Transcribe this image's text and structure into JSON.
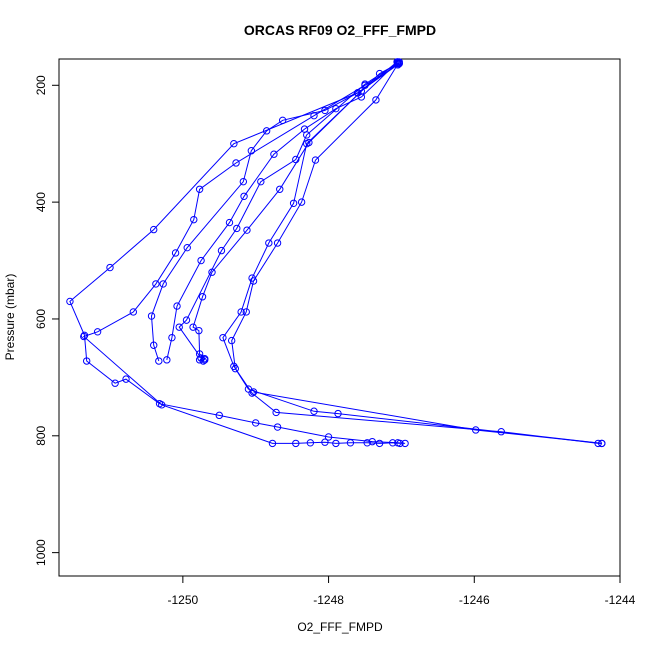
{
  "chart_data": {
    "type": "line",
    "title": "ORCAS RF09 O2_FFF_FMPD",
    "xlabel": "O2_FFF_FMPD",
    "ylabel": "Pressure (mbar)",
    "xlim": [
      -1251.7,
      -1244.0
    ],
    "ylim": [
      1040,
      155
    ],
    "y_reversed": true,
    "xticks": [
      -1250,
      -1248,
      -1246,
      -1244
    ],
    "yticks": [
      200,
      400,
      600,
      800,
      1000
    ],
    "color": "#0000ff",
    "marker": "open-circle",
    "series": [
      {
        "points": [
          [
            -1247.03,
            162
          ],
          [
            -1247.6,
            213
          ],
          [
            -1249.3,
            300
          ],
          [
            -1250.4,
            447
          ],
          [
            -1251.0,
            512
          ],
          [
            -1251.55,
            570
          ],
          [
            -1251.35,
            628
          ],
          [
            -1251.32,
            672
          ],
          [
            -1250.93,
            710
          ],
          [
            -1250.78,
            703
          ],
          [
            -1250.32,
            745
          ],
          [
            -1249.5,
            765
          ],
          [
            -1249.0,
            778
          ],
          [
            -1248.7,
            785
          ],
          [
            -1248.0,
            802
          ],
          [
            -1247.4,
            810
          ],
          [
            -1247.05,
            812
          ],
          [
            -1246.95,
            813
          ]
        ]
      },
      {
        "points": [
          [
            -1247.05,
            165
          ],
          [
            -1247.5,
            200
          ],
          [
            -1248.2,
            252
          ],
          [
            -1249.27,
            333
          ],
          [
            -1249.77,
            378
          ],
          [
            -1249.85,
            430
          ],
          [
            -1250.1,
            487
          ],
          [
            -1250.37,
            540
          ],
          [
            -1250.68,
            588
          ],
          [
            -1251.17,
            622
          ],
          [
            -1251.36,
            630
          ],
          [
            -1250.29,
            747
          ],
          [
            -1248.77,
            813
          ],
          [
            -1248.45,
            813
          ],
          [
            -1248.25,
            812
          ],
          [
            -1248.05,
            811
          ],
          [
            -1247.9,
            813
          ],
          [
            -1247.7,
            812
          ],
          [
            -1247.47,
            812
          ],
          [
            -1247.3,
            813
          ],
          [
            -1247.12,
            812
          ],
          [
            -1247.02,
            813
          ]
        ]
      },
      {
        "points": [
          [
            -1247.03,
            163
          ],
          [
            -1247.6,
            213
          ],
          [
            -1248.05,
            243
          ],
          [
            -1248.63,
            260
          ],
          [
            -1248.85,
            278
          ],
          [
            -1249.06,
            312
          ],
          [
            -1249.17,
            365
          ],
          [
            -1249.94,
            478
          ],
          [
            -1250.27,
            540
          ],
          [
            -1250.43,
            595
          ],
          [
            -1250.4,
            645
          ],
          [
            -1250.33,
            672
          ]
        ]
      },
      {
        "points": [
          [
            -1247.05,
            160
          ],
          [
            -1247.55,
            220
          ],
          [
            -1247.9,
            240
          ],
          [
            -1248.33,
            275
          ],
          [
            -1248.75,
            318
          ],
          [
            -1249.16,
            390
          ],
          [
            -1249.36,
            435
          ],
          [
            -1249.75,
            500
          ],
          [
            -1250.08,
            578
          ],
          [
            -1250.15,
            632
          ],
          [
            -1250.22,
            670
          ]
        ]
      },
      {
        "points": [
          [
            -1247.06,
            160
          ],
          [
            -1247.55,
            210
          ],
          [
            -1248.27,
            298
          ],
          [
            -1248.67,
            378
          ],
          [
            -1249.12,
            448
          ],
          [
            -1249.6,
            520
          ],
          [
            -1249.73,
            562
          ],
          [
            -1249.86,
            614
          ],
          [
            -1249.78,
            620
          ],
          [
            -1249.77,
            660
          ],
          [
            -1249.7,
            668
          ],
          [
            -1249.72,
            672
          ],
          [
            -1249.77,
            670
          ]
        ]
      },
      {
        "points": [
          [
            -1247.05,
            162
          ],
          [
            -1247.5,
            198
          ],
          [
            -1248.3,
            285
          ],
          [
            -1248.45,
            327
          ],
          [
            -1248.93,
            365
          ],
          [
            -1249.26,
            445
          ],
          [
            -1249.47,
            483
          ],
          [
            -1249.95,
            602
          ],
          [
            -1250.05,
            614
          ],
          [
            -1249.75,
            667
          ],
          [
            -1249.7,
            670
          ]
        ]
      },
      {
        "points": [
          [
            -1247.03,
            160
          ],
          [
            -1247.35,
            225
          ],
          [
            -1248.18,
            328
          ],
          [
            -1248.37,
            400
          ],
          [
            -1248.7,
            470
          ],
          [
            -1249.03,
            535
          ],
          [
            -1249.13,
            588
          ],
          [
            -1249.33,
            637
          ],
          [
            -1249.28,
            685
          ],
          [
            -1249.1,
            720
          ],
          [
            -1248.2,
            758
          ],
          [
            -1247.87,
            762
          ],
          [
            -1244.25,
            813
          ],
          [
            -1244.3,
            813
          ],
          [
            -1245.63,
            793
          ],
          [
            -1248.72,
            760
          ],
          [
            -1249.05,
            727
          ],
          [
            -1249.3,
            681
          ],
          [
            -1249.45,
            632
          ],
          [
            -1249.2,
            588
          ],
          [
            -1249.05,
            530
          ],
          [
            -1248.82,
            470
          ],
          [
            -1248.48,
            402
          ],
          [
            -1248.3,
            300
          ],
          [
            -1247.3,
            180
          ],
          [
            -1247.05,
            163
          ]
        ]
      },
      {
        "points": [
          [
            -1249.03,
            725
          ],
          [
            -1245.98,
            790
          ],
          [
            -1244.25,
            813
          ]
        ]
      }
    ]
  }
}
